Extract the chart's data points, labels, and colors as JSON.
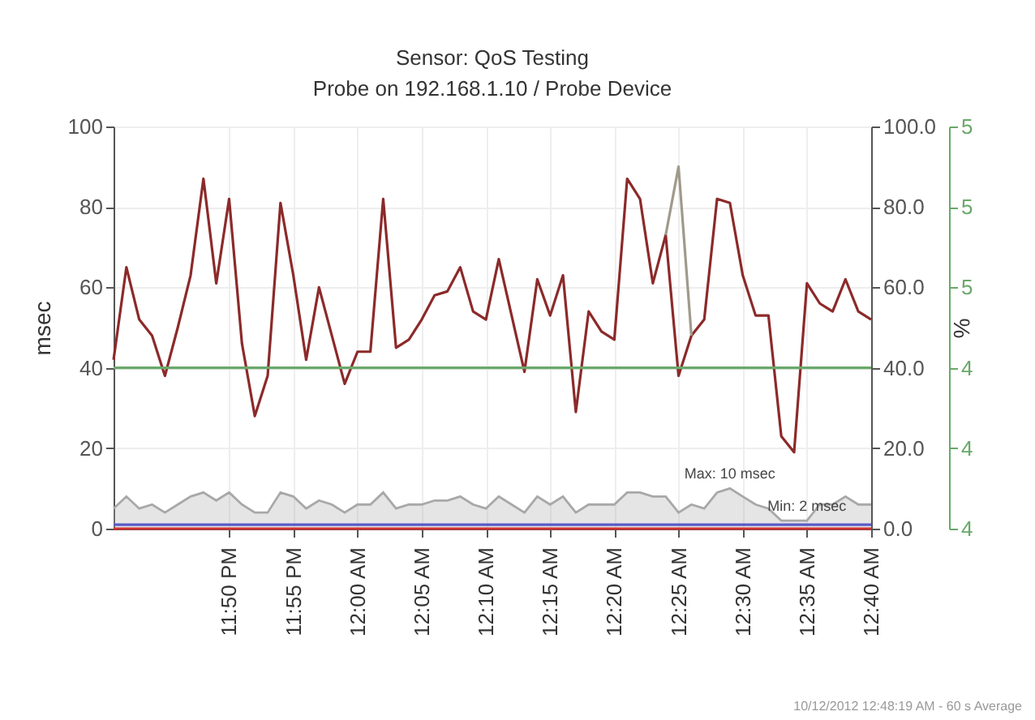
{
  "chart_data": {
    "type": "line",
    "title": "Sensor: QoS Testing",
    "subtitle": "Probe on 192.168.1.10 / Probe Device",
    "ylabel": "msec",
    "y2label": "%",
    "x": [
      "2012-10-11T23:41",
      "2012-10-11T23:42",
      "2012-10-11T23:43",
      "2012-10-11T23:44",
      "2012-10-11T23:45",
      "2012-10-11T23:46",
      "2012-10-11T23:47",
      "2012-10-11T23:48",
      "2012-10-11T23:49",
      "2012-10-11T23:50",
      "2012-10-11T23:51",
      "2012-10-11T23:52",
      "2012-10-11T23:53",
      "2012-10-11T23:54",
      "2012-10-11T23:55",
      "2012-10-11T23:56",
      "2012-10-11T23:57",
      "2012-10-11T23:58",
      "2012-10-11T23:59",
      "2012-10-12T00:00",
      "2012-10-12T00:01",
      "2012-10-12T00:02",
      "2012-10-12T00:03",
      "2012-10-12T00:04",
      "2012-10-12T00:05",
      "2012-10-12T00:06",
      "2012-10-12T00:07",
      "2012-10-12T00:08",
      "2012-10-12T00:09",
      "2012-10-12T00:10",
      "2012-10-12T00:11",
      "2012-10-12T00:12",
      "2012-10-12T00:13",
      "2012-10-12T00:14",
      "2012-10-12T00:15",
      "2012-10-12T00:16",
      "2012-10-12T00:17",
      "2012-10-12T00:18",
      "2012-10-12T00:19",
      "2012-10-12T00:20",
      "2012-10-12T00:21",
      "2012-10-12T00:22",
      "2012-10-12T00:23",
      "2012-10-12T00:24",
      "2012-10-12T00:25",
      "2012-10-12T00:26",
      "2012-10-12T00:27",
      "2012-10-12T00:28",
      "2012-10-12T00:29",
      "2012-10-12T00:30",
      "2012-10-12T00:31",
      "2012-10-12T00:32",
      "2012-10-12T00:33",
      "2012-10-12T00:34",
      "2012-10-12T00:35",
      "2012-10-12T00:36",
      "2012-10-12T00:37",
      "2012-10-12T00:38",
      "2012-10-12T00:39",
      "2012-10-12T00:40"
    ],
    "xlim": [
      "2012-10-11T23:41",
      "2012-10-12T00:40"
    ],
    "xticks": [
      {
        "value": "2012-10-11T23:50",
        "label": "11:50 PM"
      },
      {
        "value": "2012-10-11T23:55",
        "label": "11:55 PM"
      },
      {
        "value": "2012-10-12T00:00",
        "label": "12:00 AM"
      },
      {
        "value": "2012-10-12T00:05",
        "label": "12:05 AM"
      },
      {
        "value": "2012-10-12T00:10",
        "label": "12:10 AM"
      },
      {
        "value": "2012-10-12T00:15",
        "label": "12:15 AM"
      },
      {
        "value": "2012-10-12T00:20",
        "label": "12:20 AM"
      },
      {
        "value": "2012-10-12T00:25",
        "label": "12:25 AM"
      },
      {
        "value": "2012-10-12T00:30",
        "label": "12:30 AM"
      },
      {
        "value": "2012-10-12T00:35",
        "label": "12:35 AM"
      },
      {
        "value": "2012-10-12T00:40",
        "label": "12:40 AM"
      }
    ],
    "ylim": [
      0,
      100
    ],
    "yticks": [
      0,
      20,
      40,
      60,
      80,
      100
    ],
    "y2lim": [
      0,
      100
    ],
    "y2ticks": [
      {
        "value": 0,
        "label": "0.0"
      },
      {
        "value": 20,
        "label": "20.0"
      },
      {
        "value": 40,
        "label": "40.0"
      },
      {
        "value": 60,
        "label": "60.0"
      },
      {
        "value": 80,
        "label": "80.0"
      },
      {
        "value": 100,
        "label": "100.0"
      }
    ],
    "y3lim": [
      3.8,
      5.3
    ],
    "y3ticks": [
      {
        "value": 3.8,
        "label": "4"
      },
      {
        "value": 4.1,
        "label": "4"
      },
      {
        "value": 4.4,
        "label": "4"
      },
      {
        "value": 4.7,
        "label": "5"
      },
      {
        "value": 5.0,
        "label": "5"
      },
      {
        "value": 5.3,
        "label": "5"
      }
    ],
    "grid": true,
    "annotations": [
      {
        "text": "Max: 10 msec",
        "x": "2012-10-12T00:29",
        "y": 10
      },
      {
        "text": "Min: 2 msec",
        "x": "2012-10-12T00:35",
        "y": 2
      },
      "10/12/2012 12:48:19 AM - 60 s Average"
    ],
    "series": [
      {
        "type": "area",
        "color": "#a8a8a8",
        "values": [
          5,
          8,
          5,
          6,
          4,
          6,
          8,
          9,
          7,
          9,
          6,
          4,
          4,
          9,
          8,
          5,
          7,
          6,
          4,
          6,
          6,
          9,
          5,
          6,
          6,
          7,
          7,
          8,
          6,
          5,
          8,
          6,
          4,
          8,
          6,
          8,
          4,
          6,
          6,
          6,
          9,
          9,
          8,
          8,
          4,
          6,
          5,
          9,
          10,
          8,
          6,
          5,
          2,
          2,
          2,
          6,
          6,
          8,
          6,
          6
        ]
      },
      {
        "type": "line",
        "color": "#8c2a2a",
        "values": [
          42,
          65,
          52,
          48,
          38,
          50,
          63,
          87,
          61,
          82,
          46,
          28,
          38,
          81,
          63,
          42,
          60,
          48,
          36,
          44,
          44,
          82,
          45,
          47,
          52,
          58,
          59,
          65,
          54,
          52,
          67,
          53,
          39,
          62,
          53,
          63,
          29,
          54,
          49,
          47,
          87,
          82,
          61,
          73,
          38,
          48,
          52,
          82,
          81,
          63,
          53,
          53,
          23,
          19,
          61,
          56,
          54,
          62,
          54,
          52
        ]
      },
      {
        "type": "line",
        "color": "#a09a8c",
        "x": [
          "2012-10-12T00:24",
          "2012-10-12T00:25",
          "2012-10-12T00:26"
        ],
        "values": [
          73,
          90,
          48
        ]
      },
      {
        "type": "line",
        "color": "#5a5ac8",
        "x": [
          "2012-10-11T23:41",
          "2012-10-12T00:40"
        ],
        "values": [
          1,
          1
        ]
      },
      {
        "type": "line",
        "color": "#d03030",
        "x": [
          "2012-10-11T23:41",
          "2012-10-12T00:40"
        ],
        "values": [
          0,
          0
        ]
      },
      {
        "type": "line",
        "color": "#6aa86a",
        "axis": "y3",
        "x": [
          "2012-10-11T23:41",
          "2012-10-12T00:40"
        ],
        "values": [
          4.4,
          4.4
        ]
      }
    ]
  }
}
